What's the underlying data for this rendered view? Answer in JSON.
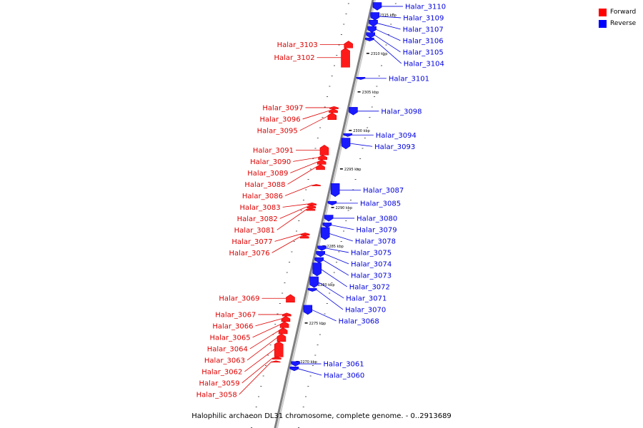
{
  "legend": [
    {
      "label": "Forward",
      "color": "#ff0000"
    },
    {
      "label": "Reverse",
      "color": "#0000ff"
    }
  ],
  "caption": "Halophilic archaeon DL31 chromosome, complete genome. - 0..2913689",
  "colors": {
    "forward": "#dd0000",
    "forward_fill": "#ff1a1a",
    "reverse": "#0000dd",
    "reverse_fill": "#1a1aff",
    "axis": "#808080"
  },
  "scale_ticks": [
    {
      "label": "2315 kbp",
      "kbp": 2315
    },
    {
      "label": "2310 kbp",
      "kbp": 2310
    },
    {
      "label": "2305 kbp",
      "kbp": 2305
    },
    {
      "label": "2300 kbp",
      "kbp": 2300
    },
    {
      "label": "2295 kbp",
      "kbp": 2295
    },
    {
      "label": "2290 kbp",
      "kbp": 2290
    },
    {
      "label": "2285 kbp",
      "kbp": 2285
    },
    {
      "label": "2280 kbp",
      "kbp": 2280
    },
    {
      "label": "2275 kbp",
      "kbp": 2275
    },
    {
      "label": "2270 kbp",
      "kbp": 2270
    }
  ],
  "forward_genes": [
    {
      "name": "Halar_3103",
      "start_kbp": 2310.7,
      "end_kbp": 2311.6
    },
    {
      "name": "Halar_3102",
      "start_kbp": 2308.2,
      "end_kbp": 2310.7
    },
    {
      "name": "Halar_3097",
      "start_kbp": 2302.8,
      "end_kbp": 2303.1
    },
    {
      "name": "Halar_3096",
      "start_kbp": 2302.3,
      "end_kbp": 2302.8
    },
    {
      "name": "Halar_3095",
      "start_kbp": 2301.4,
      "end_kbp": 2302.3
    },
    {
      "name": "Halar_3091",
      "start_kbp": 2296.8,
      "end_kbp": 2298.1
    },
    {
      "name": "Halar_3090",
      "start_kbp": 2296.2,
      "end_kbp": 2296.8
    },
    {
      "name": "Halar_3089",
      "start_kbp": 2295.6,
      "end_kbp": 2296.2
    },
    {
      "name": "Halar_3088",
      "start_kbp": 2294.9,
      "end_kbp": 2295.6
    },
    {
      "name": "Halar_3086",
      "start_kbp": 2292.8,
      "end_kbp": 2293.0
    },
    {
      "name": "Halar_3083",
      "start_kbp": 2290.3,
      "end_kbp": 2290.6
    },
    {
      "name": "Halar_3082",
      "start_kbp": 2289.9,
      "end_kbp": 2290.3
    },
    {
      "name": "Halar_3081",
      "start_kbp": 2289.6,
      "end_kbp": 2289.9
    },
    {
      "name": "Halar_3077",
      "start_kbp": 2286.4,
      "end_kbp": 2286.7
    },
    {
      "name": "Halar_3076",
      "start_kbp": 2286.0,
      "end_kbp": 2286.4
    },
    {
      "name": "Halar_3069",
      "start_kbp": 2277.7,
      "end_kbp": 2278.7
    },
    {
      "name": "Halar_3067",
      "start_kbp": 2275.9,
      "end_kbp": 2276.3
    },
    {
      "name": "Halar_3066",
      "start_kbp": 2275.2,
      "end_kbp": 2275.9
    },
    {
      "name": "Halar_3065",
      "start_kbp": 2274.4,
      "end_kbp": 2275.2
    },
    {
      "name": "Halar_3064",
      "start_kbp": 2273.6,
      "end_kbp": 2274.4
    },
    {
      "name": "Halar_3063",
      "start_kbp": 2272.6,
      "end_kbp": 2273.6
    },
    {
      "name": "Halar_3062",
      "start_kbp": 2270.6,
      "end_kbp": 2272.6
    },
    {
      "name": "Halar_3059",
      "start_kbp": 2270.3,
      "end_kbp": 2270.6
    },
    {
      "name": "Halar_3058",
      "start_kbp": 2269.9,
      "end_kbp": 2270.1
    }
  ],
  "reverse_genes": [
    {
      "name": "Halar_3110",
      "start_kbp": 2315.6,
      "end_kbp": 2316.6
    },
    {
      "name": "Halar_3109",
      "start_kbp": 2314.3,
      "end_kbp": 2315.3
    },
    {
      "name": "Halar_3107",
      "start_kbp": 2313.5,
      "end_kbp": 2314.3
    },
    {
      "name": "Halar_3106",
      "start_kbp": 2312.7,
      "end_kbp": 2313.5
    },
    {
      "name": "Halar_3105",
      "start_kbp": 2312.0,
      "end_kbp": 2312.7
    },
    {
      "name": "Halar_3104",
      "start_kbp": 2311.6,
      "end_kbp": 2312.0
    },
    {
      "name": "Halar_3101",
      "start_kbp": 2306.6,
      "end_kbp": 2306.9
    },
    {
      "name": "Halar_3098",
      "start_kbp": 2302.0,
      "end_kbp": 2303.0
    },
    {
      "name": "Halar_3094",
      "start_kbp": 2299.2,
      "end_kbp": 2299.6
    },
    {
      "name": "Halar_3093",
      "start_kbp": 2297.6,
      "end_kbp": 2299.0
    },
    {
      "name": "Halar_3087",
      "start_kbp": 2291.4,
      "end_kbp": 2293.1
    },
    {
      "name": "Halar_3085",
      "start_kbp": 2290.3,
      "end_kbp": 2290.8
    },
    {
      "name": "Halar_3080",
      "start_kbp": 2288.2,
      "end_kbp": 2289.0
    },
    {
      "name": "Halar_3079",
      "start_kbp": 2287.4,
      "end_kbp": 2288.0
    },
    {
      "name": "Halar_3078",
      "start_kbp": 2285.8,
      "end_kbp": 2287.4
    },
    {
      "name": "Halar_3075",
      "start_kbp": 2284.4,
      "end_kbp": 2285.0
    },
    {
      "name": "Halar_3074",
      "start_kbp": 2283.6,
      "end_kbp": 2284.3
    },
    {
      "name": "Halar_3073",
      "start_kbp": 2282.8,
      "end_kbp": 2283.5
    },
    {
      "name": "Halar_3072",
      "start_kbp": 2281.1,
      "end_kbp": 2282.8
    },
    {
      "name": "Halar_3071",
      "start_kbp": 2279.6,
      "end_kbp": 2281.0
    },
    {
      "name": "Halar_3070",
      "start_kbp": 2279.1,
      "end_kbp": 2279.5
    },
    {
      "name": "Halar_3068",
      "start_kbp": 2276.1,
      "end_kbp": 2277.3
    },
    {
      "name": "Halar_3061",
      "start_kbp": 2269.4,
      "end_kbp": 2270.0
    },
    {
      "name": "Halar_3060",
      "start_kbp": 2268.8,
      "end_kbp": 2269.3
    }
  ]
}
